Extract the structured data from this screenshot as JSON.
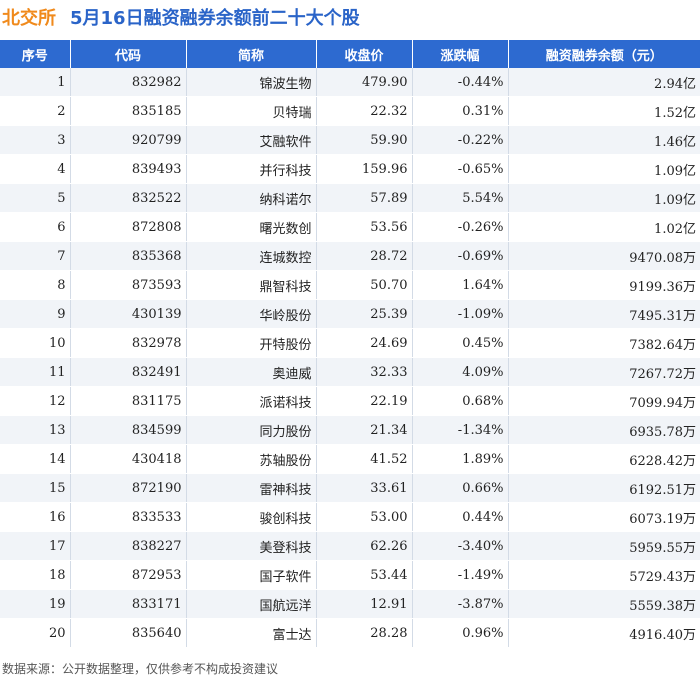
{
  "title": {
    "market": "北交所",
    "main": "5月16日融资融券余额前二十大个股"
  },
  "columns": [
    "序号",
    "代码",
    "简称",
    "收盘价",
    "涨跌幅",
    "融资融券余额（元）"
  ],
  "rows": [
    {
      "rank": "1",
      "code": "832982",
      "name": "锦波生物",
      "close": "479.90",
      "change": "-0.44%",
      "balance": "2.94亿",
      "dir": "down"
    },
    {
      "rank": "2",
      "code": "835185",
      "name": "贝特瑞",
      "close": "22.32",
      "change": "0.31%",
      "balance": "1.52亿",
      "dir": "up"
    },
    {
      "rank": "3",
      "code": "920799",
      "name": "艾融软件",
      "close": "59.90",
      "change": "-0.22%",
      "balance": "1.46亿",
      "dir": "down"
    },
    {
      "rank": "4",
      "code": "839493",
      "name": "并行科技",
      "close": "159.96",
      "change": "-0.65%",
      "balance": "1.09亿",
      "dir": "down"
    },
    {
      "rank": "5",
      "code": "832522",
      "name": "纳科诺尔",
      "close": "57.89",
      "change": "5.54%",
      "balance": "1.09亿",
      "dir": "up"
    },
    {
      "rank": "6",
      "code": "872808",
      "name": "曙光数创",
      "close": "53.56",
      "change": "-0.26%",
      "balance": "1.02亿",
      "dir": "down"
    },
    {
      "rank": "7",
      "code": "835368",
      "name": "连城数控",
      "close": "28.72",
      "change": "-0.69%",
      "balance": "9470.08万",
      "dir": "down"
    },
    {
      "rank": "8",
      "code": "873593",
      "name": "鼎智科技",
      "close": "50.70",
      "change": "1.64%",
      "balance": "9199.36万",
      "dir": "up"
    },
    {
      "rank": "9",
      "code": "430139",
      "name": "华岭股份",
      "close": "25.39",
      "change": "-1.09%",
      "balance": "7495.31万",
      "dir": "down"
    },
    {
      "rank": "10",
      "code": "832978",
      "name": "开特股份",
      "close": "24.69",
      "change": "0.45%",
      "balance": "7382.64万",
      "dir": "up"
    },
    {
      "rank": "11",
      "code": "832491",
      "name": "奥迪威",
      "close": "32.33",
      "change": "4.09%",
      "balance": "7267.72万",
      "dir": "up"
    },
    {
      "rank": "12",
      "code": "831175",
      "name": "派诺科技",
      "close": "22.19",
      "change": "0.68%",
      "balance": "7099.94万",
      "dir": "up"
    },
    {
      "rank": "13",
      "code": "834599",
      "name": "同力股份",
      "close": "21.34",
      "change": "-1.34%",
      "balance": "6935.78万",
      "dir": "down"
    },
    {
      "rank": "14",
      "code": "430418",
      "name": "苏轴股份",
      "close": "41.52",
      "change": "1.89%",
      "balance": "6228.42万",
      "dir": "up"
    },
    {
      "rank": "15",
      "code": "872190",
      "name": "雷神科技",
      "close": "33.61",
      "change": "0.66%",
      "balance": "6192.51万",
      "dir": "up"
    },
    {
      "rank": "16",
      "code": "833533",
      "name": "骏创科技",
      "close": "53.00",
      "change": "0.44%",
      "balance": "6073.19万",
      "dir": "up"
    },
    {
      "rank": "17",
      "code": "838227",
      "name": "美登科技",
      "close": "62.26",
      "change": "-3.40%",
      "balance": "5959.55万",
      "dir": "down"
    },
    {
      "rank": "18",
      "code": "872953",
      "name": "国子软件",
      "close": "53.44",
      "change": "-1.49%",
      "balance": "5729.43万",
      "dir": "down"
    },
    {
      "rank": "19",
      "code": "833171",
      "name": "国航远洋",
      "close": "12.91",
      "change": "-3.87%",
      "balance": "5559.38万",
      "dir": "down"
    },
    {
      "rank": "20",
      "code": "835640",
      "name": "富士达",
      "close": "28.28",
      "change": "0.96%",
      "balance": "4916.40万",
      "dir": "up"
    }
  ],
  "footer": "数据来源：公开数据整理，仅供参考不构成投资建议",
  "colors": {
    "up": "#e0201e",
    "down": "#1e9d3a",
    "header": "#2d6ad0",
    "market": "#f08a1c",
    "title": "#2a64c8"
  }
}
